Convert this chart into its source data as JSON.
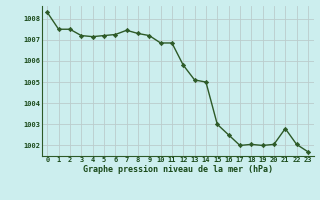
{
  "x": [
    0,
    1,
    2,
    3,
    4,
    5,
    6,
    7,
    8,
    9,
    10,
    11,
    12,
    13,
    14,
    15,
    16,
    17,
    18,
    19,
    20,
    21,
    22,
    23
  ],
  "y": [
    1008.3,
    1007.5,
    1007.5,
    1007.2,
    1007.15,
    1007.2,
    1007.25,
    1007.45,
    1007.3,
    1007.2,
    1006.85,
    1006.85,
    1005.8,
    1005.1,
    1005.0,
    1003.0,
    1002.5,
    1002.0,
    1002.05,
    1002.0,
    1002.05,
    1002.8,
    1002.05,
    1001.7
  ],
  "line_color": "#2d5a27",
  "marker": "D",
  "marker_size": 2.2,
  "bg_color": "#cceeee",
  "grid_color": "#bbcccc",
  "xlabel": "Graphe pression niveau de la mer (hPa)",
  "xlabel_color": "#1a4a1a",
  "tick_label_color": "#1a4a1a",
  "ylim": [
    1001.5,
    1008.6
  ],
  "yticks": [
    1002,
    1003,
    1004,
    1005,
    1006,
    1007,
    1008
  ],
  "xticks": [
    0,
    1,
    2,
    3,
    4,
    5,
    6,
    7,
    8,
    9,
    10,
    11,
    12,
    13,
    14,
    15,
    16,
    17,
    18,
    19,
    20,
    21,
    22,
    23
  ],
  "line_width": 1.0
}
